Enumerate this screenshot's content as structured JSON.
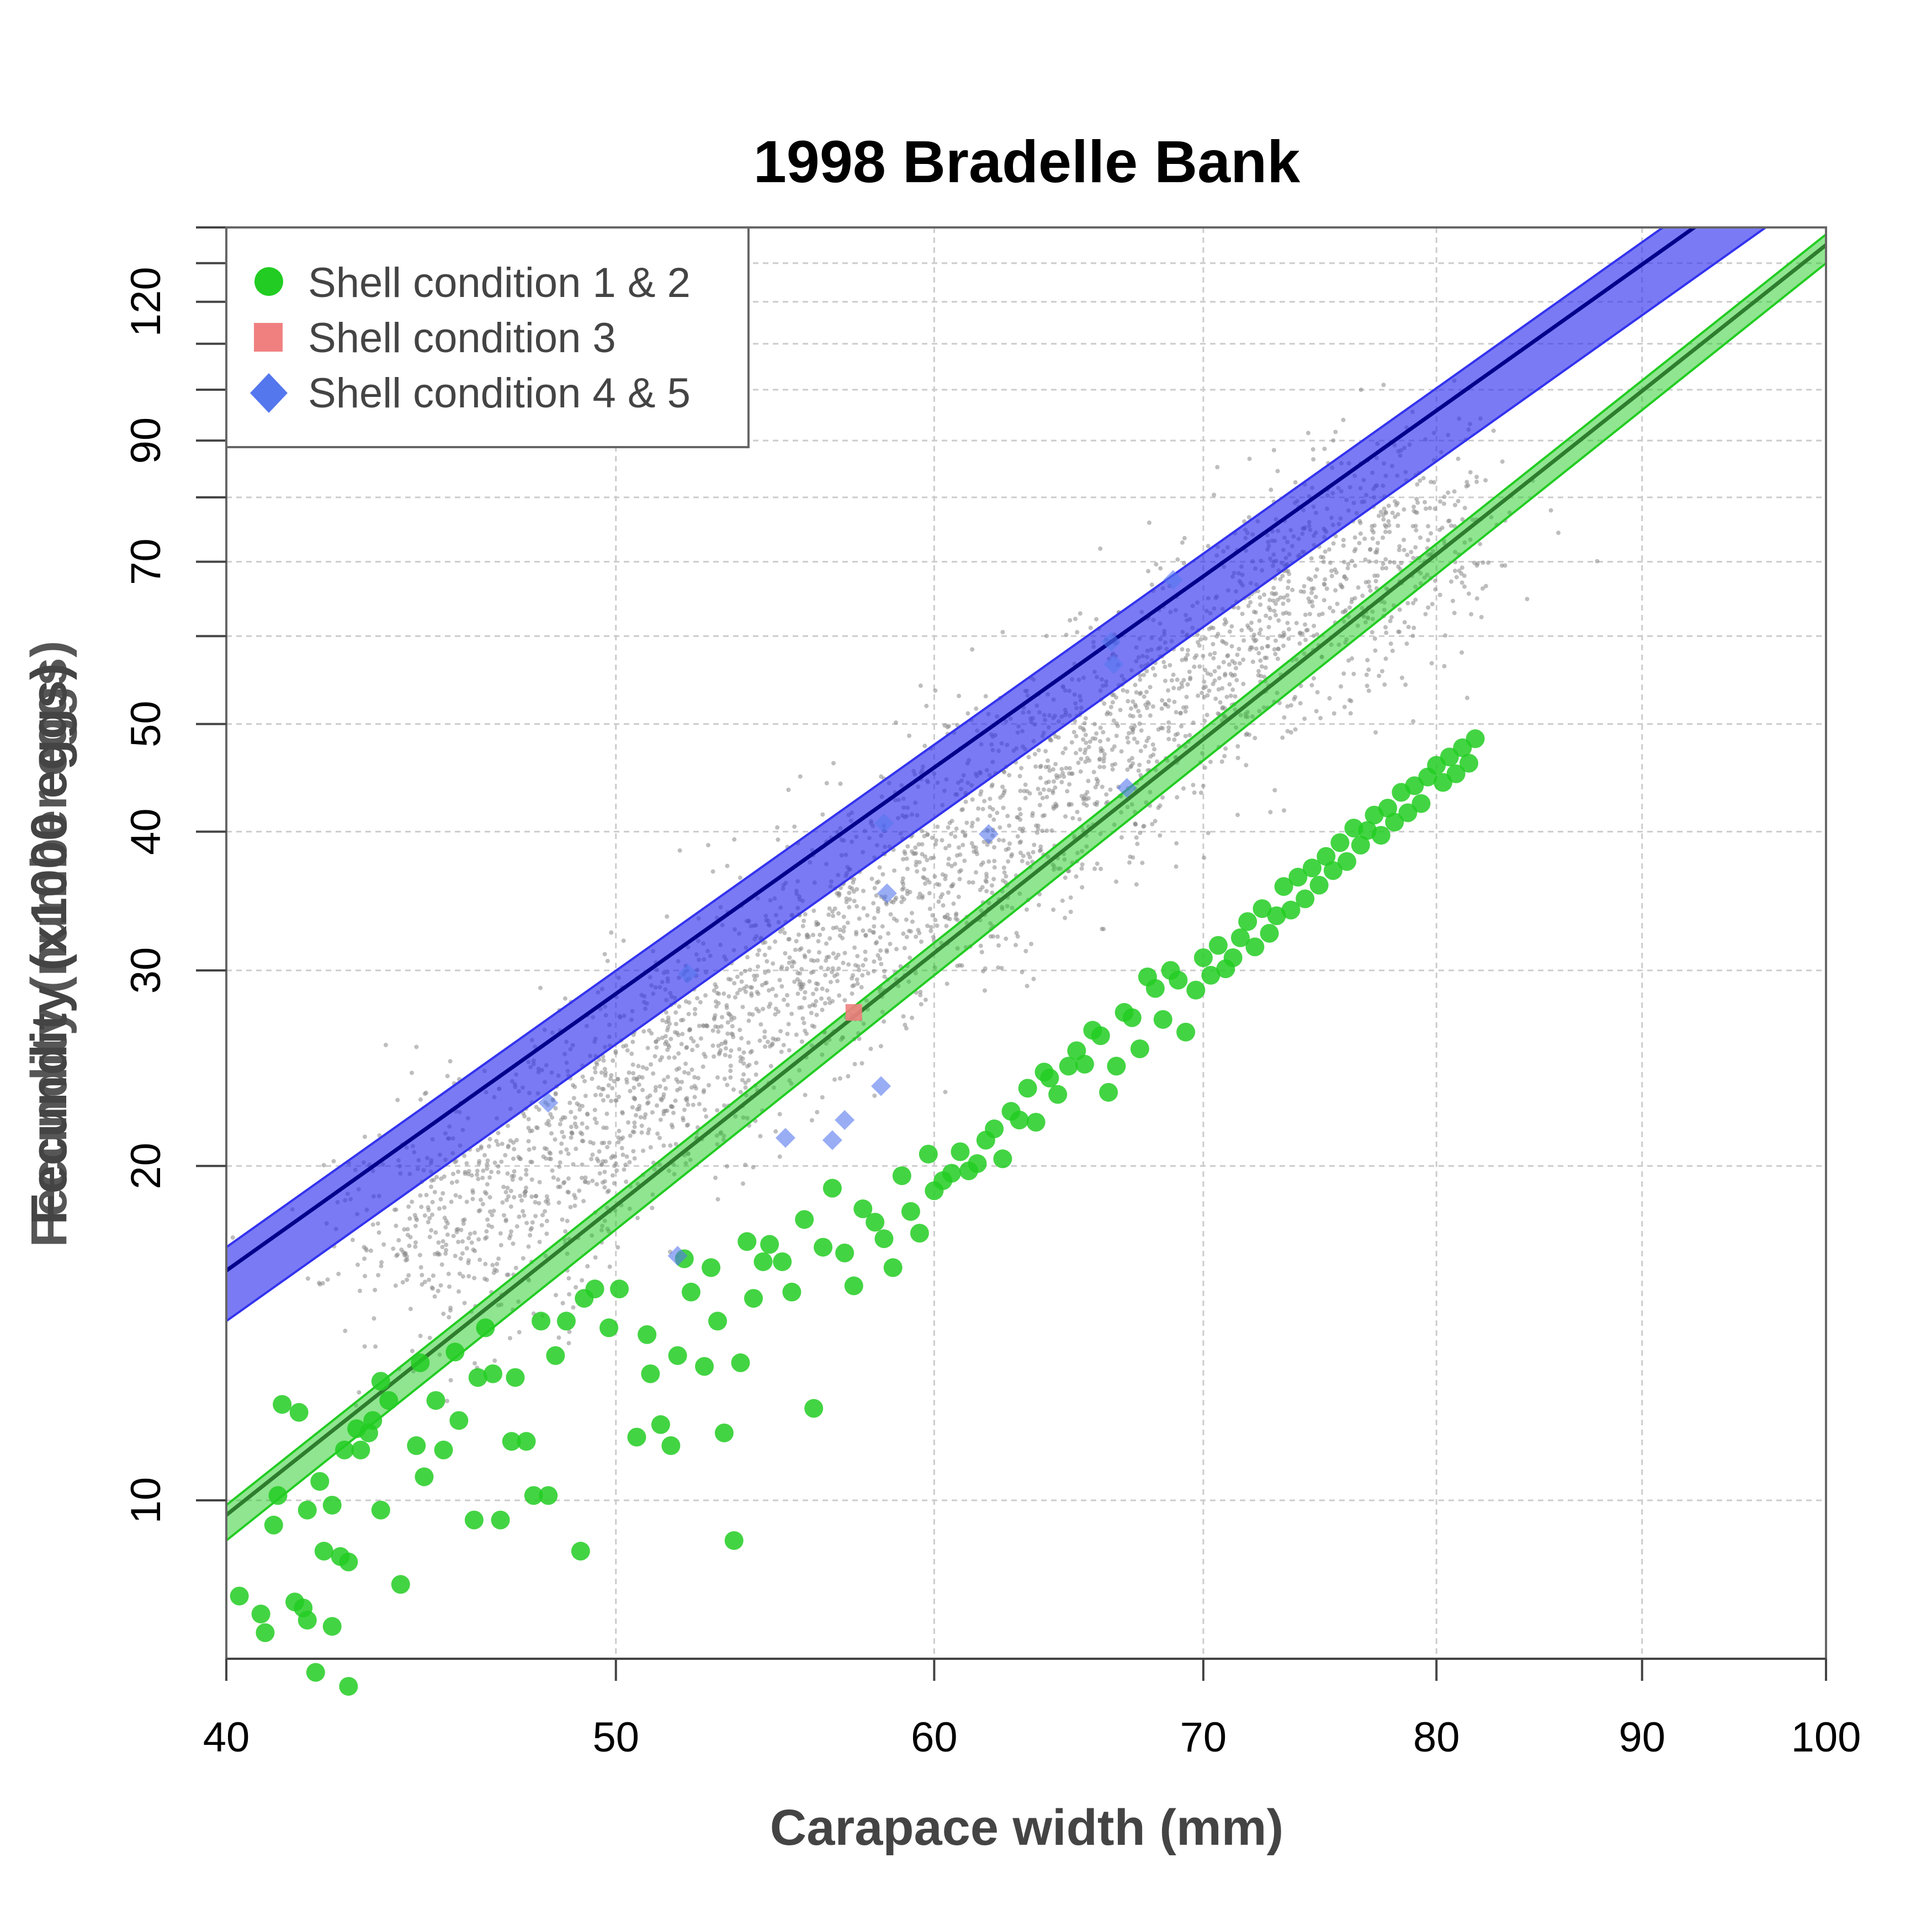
{
  "chart_data": {
    "type": "scatter",
    "title": "1998 Bradelle Bank",
    "xlabel": "Carapace width (mm)",
    "ylabel": "Fecundity (x1000 eggs)",
    "ylabel_overlap": "Fecundity (number eggs)",
    "x_scale": "log",
    "y_scale": "log",
    "xlim": [
      40,
      100
    ],
    "ylim": [
      7.2,
      140
    ],
    "x_ticks": [
      40,
      50,
      60,
      70,
      80,
      90,
      100
    ],
    "y_tick_labels": [
      10,
      20,
      30,
      40,
      50,
      70,
      90,
      120
    ],
    "y_minor_ticks": [
      60,
      80,
      100,
      110,
      130,
      140
    ],
    "grid": true,
    "legend_position": "top-left",
    "colors": {
      "green": "#22cc22",
      "green_line": "#2e7d2e",
      "red": "#f08080",
      "blue_fill": "#3333ee",
      "blue_line": "#00008b",
      "blue_point": "#5577ee",
      "background": "#888888"
    },
    "legend": [
      {
        "name": "Shell condition 1 & 2",
        "color": "#22cc22",
        "marker": "circle"
      },
      {
        "name": "Shell condition 3",
        "color": "#f08080",
        "marker": "square"
      },
      {
        "name": "Shell condition 4 & 5",
        "color": "#5577ee",
        "marker": "diamond"
      }
    ],
    "fits": [
      {
        "series": "Shell condition 4 & 5",
        "line": [
          [
            40,
            16.1
          ],
          [
            100,
            170
          ]
        ],
        "band_upper": [
          [
            40,
            16.9
          ],
          [
            100,
            178
          ]
        ],
        "band_lower": [
          [
            40,
            14.5
          ],
          [
            100,
            153
          ]
        ]
      },
      {
        "series": "Shell condition 1 & 2",
        "line": [
          [
            40,
            9.7
          ],
          [
            100,
            135
          ]
        ],
        "band_upper": [
          [
            40,
            9.9
          ],
          [
            100,
            138
          ]
        ],
        "band_lower": [
          [
            40,
            9.2
          ],
          [
            100,
            130
          ]
        ]
      }
    ],
    "background_cloud": {
      "center": [
        [
          44,
          16
        ],
        [
          80,
          80
        ]
      ],
      "n_points": 3200
    },
    "series": [
      {
        "name": "Shell condition 1 & 2",
        "points": [
          [
            40.3,
            8.2
          ],
          [
            40.8,
            7.9
          ],
          [
            40.9,
            7.6
          ],
          [
            41.1,
            9.5
          ],
          [
            41.2,
            10.1
          ],
          [
            41.3,
            12.2
          ],
          [
            41.6,
            8.1
          ],
          [
            41.7,
            12.0
          ],
          [
            41.8,
            8.0
          ],
          [
            41.9,
            9.8
          ],
          [
            41.9,
            7.8
          ],
          [
            42.1,
            7.0
          ],
          [
            42.2,
            10.4
          ],
          [
            42.3,
            9.0
          ],
          [
            42.5,
            7.7
          ],
          [
            42.5,
            9.9
          ],
          [
            42.7,
            8.9
          ],
          [
            42.8,
            11.1
          ],
          [
            42.9,
            6.8
          ],
          [
            42.9,
            8.8
          ],
          [
            43.1,
            11.6
          ],
          [
            43.2,
            11.1
          ],
          [
            43.4,
            11.5
          ],
          [
            43.5,
            11.8
          ],
          [
            43.7,
            12.8
          ],
          [
            43.7,
            9.8
          ],
          [
            43.9,
            12.3
          ],
          [
            44.2,
            8.4
          ],
          [
            44.6,
            11.2
          ],
          [
            44.7,
            13.3
          ],
          [
            44.8,
            10.5
          ],
          [
            45.1,
            12.3
          ],
          [
            45.3,
            11.1
          ],
          [
            45.6,
            13.6
          ],
          [
            45.7,
            11.8
          ],
          [
            46.1,
            9.6
          ],
          [
            46.2,
            12.9
          ],
          [
            46.4,
            14.3
          ],
          [
            46.6,
            13.0
          ],
          [
            46.8,
            9.6
          ],
          [
            47.1,
            11.3
          ],
          [
            47.2,
            12.9
          ],
          [
            47.5,
            11.3
          ],
          [
            47.7,
            10.1
          ],
          [
            47.9,
            14.5
          ],
          [
            48.1,
            10.1
          ],
          [
            48.3,
            13.5
          ],
          [
            48.6,
            14.5
          ],
          [
            49.0,
            9.0
          ],
          [
            49.1,
            15.2
          ],
          [
            49.4,
            15.5
          ],
          [
            49.8,
            14.3
          ],
          [
            50.1,
            15.5
          ],
          [
            50.6,
            11.4
          ],
          [
            50.9,
            14.1
          ],
          [
            51.0,
            13.0
          ],
          [
            51.3,
            11.7
          ],
          [
            51.6,
            11.2
          ],
          [
            51.8,
            13.5
          ],
          [
            52.0,
            16.5
          ],
          [
            52.2,
            15.4
          ],
          [
            52.6,
            13.2
          ],
          [
            52.8,
            16.2
          ],
          [
            53.0,
            14.5
          ],
          [
            53.2,
            11.5
          ],
          [
            53.5,
            9.2
          ],
          [
            53.7,
            13.3
          ],
          [
            53.9,
            17.1
          ],
          [
            54.1,
            15.2
          ],
          [
            54.4,
            16.4
          ],
          [
            54.6,
            17.0
          ],
          [
            55.0,
            16.4
          ],
          [
            55.3,
            15.4
          ],
          [
            55.7,
            17.9
          ],
          [
            56.0,
            12.1
          ],
          [
            56.3,
            16.9
          ],
          [
            56.6,
            19.1
          ],
          [
            57.0,
            16.7
          ],
          [
            57.3,
            15.6
          ],
          [
            57.6,
            18.3
          ],
          [
            58.0,
            17.8
          ],
          [
            58.3,
            17.2
          ],
          [
            58.6,
            16.2
          ],
          [
            58.9,
            19.6
          ],
          [
            59.2,
            18.2
          ],
          [
            59.5,
            17.4
          ],
          [
            59.8,
            20.5
          ],
          [
            60.0,
            19.0
          ],
          [
            60.3,
            19.4
          ],
          [
            60.6,
            19.7
          ],
          [
            60.9,
            20.6
          ],
          [
            61.2,
            19.8
          ],
          [
            61.5,
            20.1
          ],
          [
            61.8,
            21.1
          ],
          [
            62.1,
            21.6
          ],
          [
            62.4,
            20.3
          ],
          [
            62.7,
            22.4
          ],
          [
            63.0,
            22.0
          ],
          [
            63.3,
            23.5
          ],
          [
            63.6,
            21.9
          ],
          [
            63.9,
            24.3
          ],
          [
            64.1,
            24.0
          ],
          [
            64.4,
            23.2
          ],
          [
            64.8,
            24.6
          ],
          [
            65.1,
            25.4
          ],
          [
            65.4,
            24.7
          ],
          [
            65.7,
            26.5
          ],
          [
            66.0,
            26.2
          ],
          [
            66.3,
            23.3
          ],
          [
            66.6,
            24.6
          ],
          [
            66.9,
            27.5
          ],
          [
            67.2,
            27.2
          ],
          [
            67.5,
            25.5
          ],
          [
            67.8,
            29.6
          ],
          [
            68.1,
            28.9
          ],
          [
            68.4,
            27.1
          ],
          [
            68.7,
            30.0
          ],
          [
            69.0,
            29.4
          ],
          [
            69.3,
            26.4
          ],
          [
            69.7,
            28.8
          ],
          [
            70.0,
            30.8
          ],
          [
            70.3,
            29.7
          ],
          [
            70.6,
            31.6
          ],
          [
            70.9,
            30.1
          ],
          [
            71.2,
            30.8
          ],
          [
            71.5,
            32.1
          ],
          [
            71.8,
            33.2
          ],
          [
            72.1,
            31.5
          ],
          [
            72.4,
            34.1
          ],
          [
            72.7,
            32.4
          ],
          [
            73.0,
            33.6
          ],
          [
            73.3,
            35.7
          ],
          [
            73.6,
            34.0
          ],
          [
            73.9,
            36.4
          ],
          [
            74.2,
            34.8
          ],
          [
            74.5,
            37.1
          ],
          [
            74.8,
            35.8
          ],
          [
            75.1,
            38.0
          ],
          [
            75.4,
            36.9
          ],
          [
            75.7,
            39.1
          ],
          [
            76.0,
            37.6
          ],
          [
            76.3,
            40.3
          ],
          [
            76.6,
            38.9
          ],
          [
            76.9,
            40.1
          ],
          [
            77.2,
            41.4
          ],
          [
            77.5,
            39.7
          ],
          [
            77.8,
            42.0
          ],
          [
            78.1,
            40.8
          ],
          [
            78.4,
            43.4
          ],
          [
            78.7,
            41.6
          ],
          [
            79.0,
            44.0
          ],
          [
            79.3,
            42.4
          ],
          [
            79.6,
            44.8
          ],
          [
            80.0,
            45.9
          ],
          [
            80.3,
            44.3
          ],
          [
            80.6,
            46.7
          ],
          [
            80.9,
            45.1
          ],
          [
            81.2,
            47.6
          ],
          [
            81.5,
            46.1
          ],
          [
            81.8,
            48.5
          ]
        ]
      },
      {
        "name": "Shell condition 3",
        "points": [
          [
            57.3,
            27.5
          ]
        ]
      },
      {
        "name": "Shell condition 4 & 5",
        "points": [
          [
            48.1,
            22.8
          ],
          [
            52.1,
            29.8
          ],
          [
            55.1,
            21.2
          ],
          [
            56.6,
            21.1
          ],
          [
            57.0,
            22.0
          ],
          [
            58.2,
            23.6
          ],
          [
            58.4,
            35.2
          ],
          [
            58.3,
            40.7
          ],
          [
            61.9,
            39.8
          ],
          [
            66.4,
            59.3
          ],
          [
            66.5,
            56.6
          ],
          [
            67.0,
            43.8
          ],
          [
            68.8,
            67.4
          ],
          [
            51.8,
            16.6
          ]
        ]
      }
    ]
  }
}
